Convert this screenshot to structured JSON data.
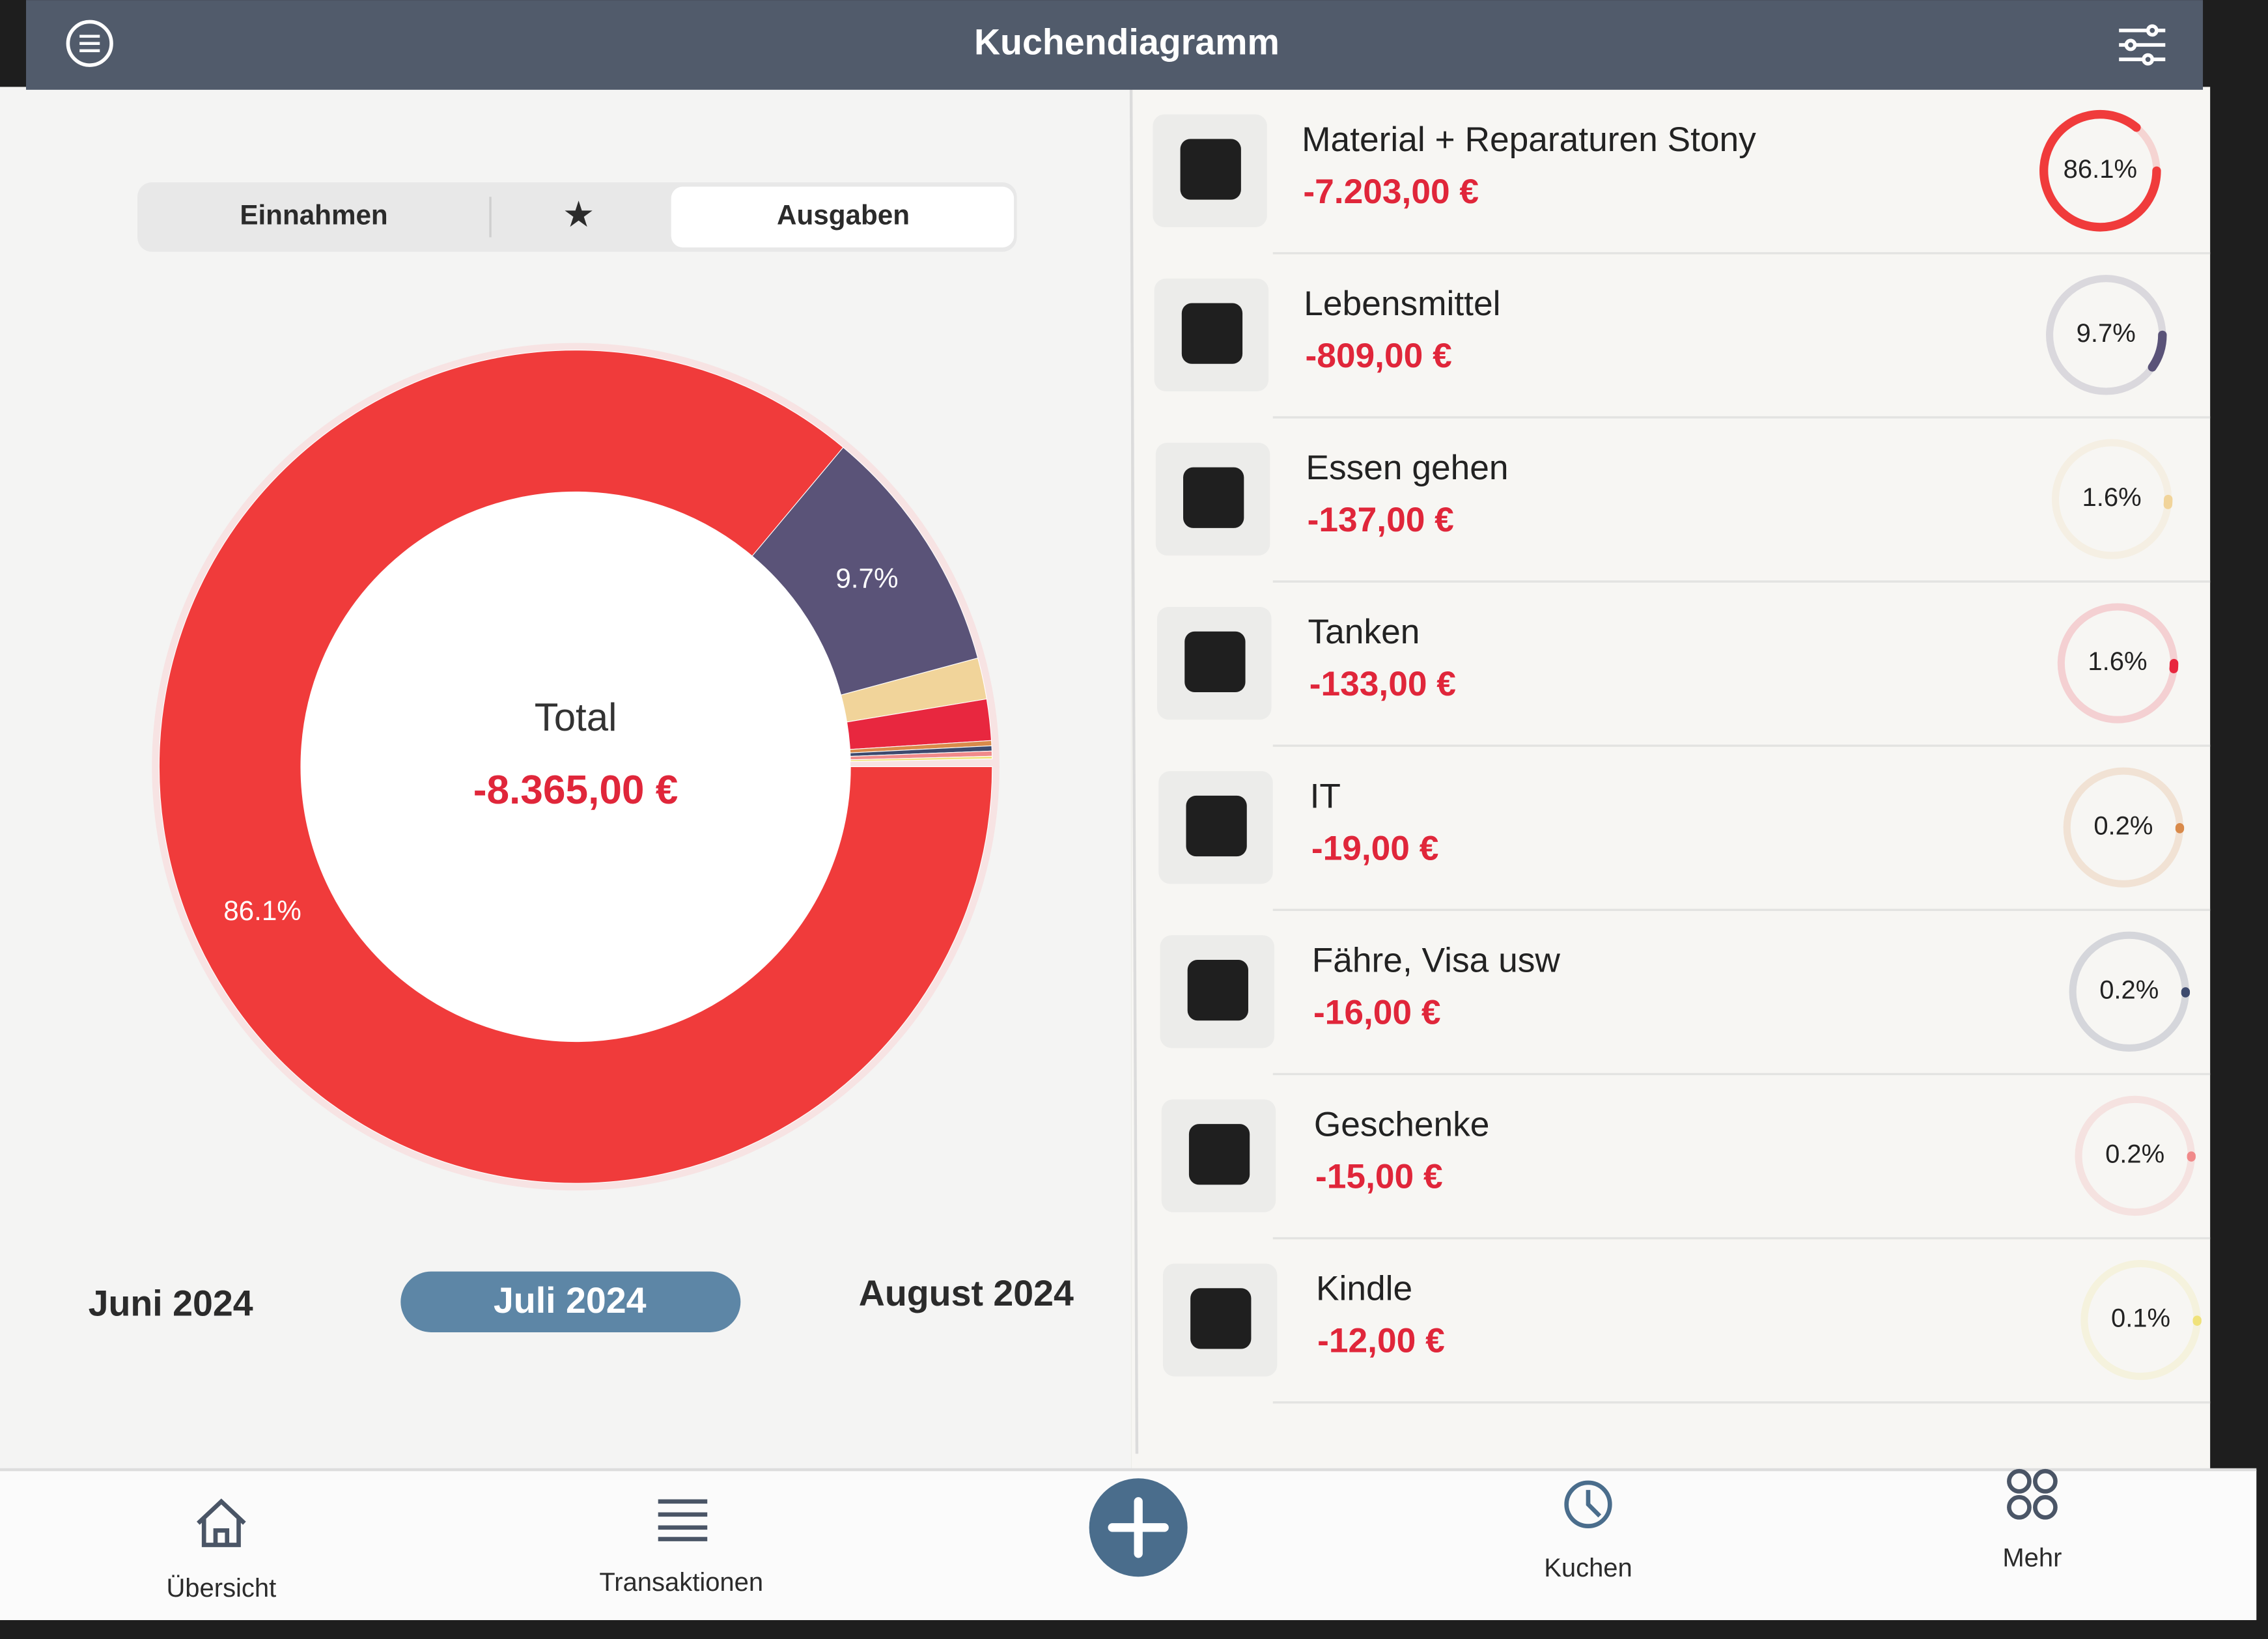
{
  "header": {
    "title": "Kuchendiagramm"
  },
  "segments": {
    "options": [
      "Einnahmen",
      "★",
      "Ausgaben"
    ],
    "selected": 2
  },
  "total": {
    "label": "Total",
    "amount": "-8.365,00 €"
  },
  "months": {
    "previous": "Juni 2024",
    "current": "Juli 2024",
    "next": "August 2024"
  },
  "items": [
    {
      "name": "Material + Reparaturen Stony",
      "amount": "-7.203,00 €",
      "percent": {
        "value": 86.1,
        "label": "86.1%"
      },
      "color": "#f03b3b"
    },
    {
      "name": "Lebensmittel",
      "amount": "-809,00 €",
      "percent": {
        "value": 9.7,
        "label": "9.7%"
      },
      "color": "#5a5378"
    },
    {
      "name": "Essen gehen",
      "amount": "-137,00 €",
      "percent": {
        "value": 1.6,
        "label": "1.6%"
      },
      "color": "#f1d49a"
    },
    {
      "name": "Tanken",
      "amount": "-133,00 €",
      "percent": {
        "value": 1.6,
        "label": "1.6%"
      },
      "color": "#e8273f"
    },
    {
      "name": "IT",
      "amount": "-19,00 €",
      "percent": {
        "value": 0.2,
        "label": "0.2%"
      },
      "color": "#d98a4a"
    },
    {
      "name": "Fähre, Visa usw",
      "amount": "-16,00 €",
      "percent": {
        "value": 0.2,
        "label": "0.2%"
      },
      "color": "#3d4a6e"
    },
    {
      "name": "Geschenke",
      "amount": "-15,00 €",
      "percent": {
        "value": 0.2,
        "label": "0.2%"
      },
      "color": "#f08a8a"
    },
    {
      "name": "Kindle",
      "amount": "-12,00 €",
      "percent": {
        "value": 0.1,
        "label": "0.1%"
      },
      "color": "#f0e27a"
    }
  ],
  "tabs": [
    "Übersicht",
    "Transaktionen",
    "Kuchen",
    "Mehr"
  ]
}
